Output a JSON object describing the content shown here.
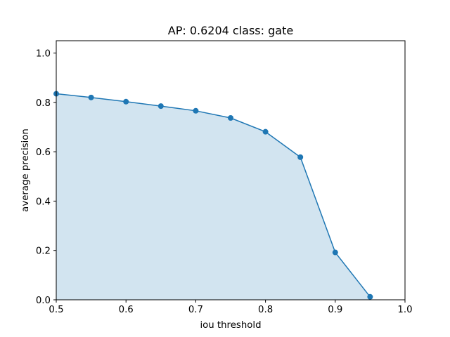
{
  "chart_data": {
    "type": "area",
    "title": "AP: 0.6204 class: gate",
    "xlabel": "iou threshold",
    "ylabel": "average precision",
    "xlim": [
      0.5,
      1.0
    ],
    "ylim": [
      0.0,
      1.05
    ],
    "xticks": [
      "0.5",
      "0.6",
      "0.7",
      "0.8",
      "0.9",
      "1.0"
    ],
    "yticks": [
      "0.0",
      "0.2",
      "0.4",
      "0.6",
      "0.8",
      "1.0"
    ],
    "grid": false,
    "series": [
      {
        "x": [
          0.5,
          0.55,
          0.6,
          0.65,
          0.7,
          0.75,
          0.8,
          0.85,
          0.9,
          0.95
        ],
        "values": [
          0.835,
          0.82,
          0.803,
          0.785,
          0.766,
          0.737,
          0.681,
          0.578,
          0.192,
          0.012
        ],
        "color": "#1f77b4",
        "fill_color": "#1f77b4",
        "fill_opacity": 0.2,
        "marker": "circle"
      }
    ]
  }
}
